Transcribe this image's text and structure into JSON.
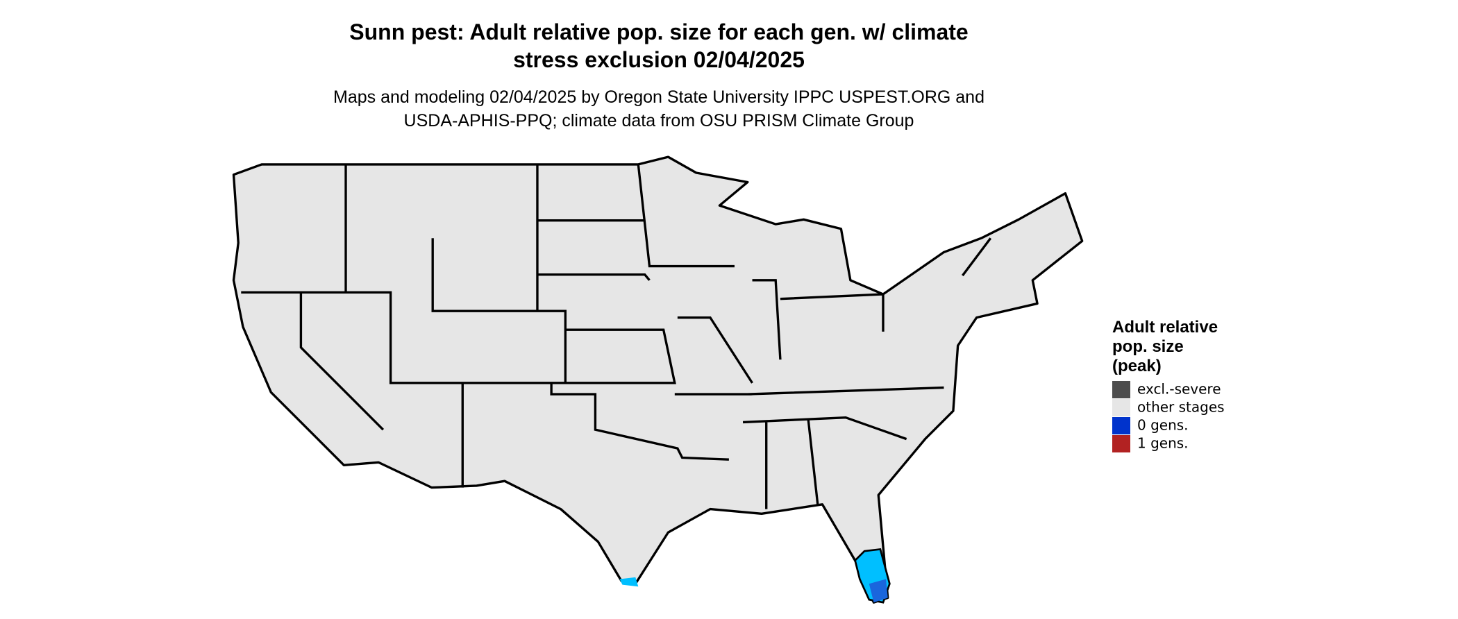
{
  "header": {
    "title_lines": [
      "Sunn pest: Adult relative pop. size for each gen. w/ climate",
      "stress exclusion 02/04/2025"
    ],
    "subtitle_lines": [
      "Maps and modeling 02/04/2025 by Oregon State University IPPC USPEST.ORG and",
      "USDA-APHIS-PPQ; climate data from OSU PRISM Climate Group"
    ]
  },
  "legend": {
    "title_lines": [
      "Adult relative",
      "pop. size",
      "(peak)"
    ],
    "items": [
      {
        "label": "excl.-severe",
        "color": "#4d4d4d"
      },
      {
        "label": "other stages",
        "color": "#e6e6e6"
      },
      {
        "label": "0 gens.",
        "color": "#0033cc"
      },
      {
        "label": "1 gens.",
        "color": "#b22222"
      }
    ]
  }
}
